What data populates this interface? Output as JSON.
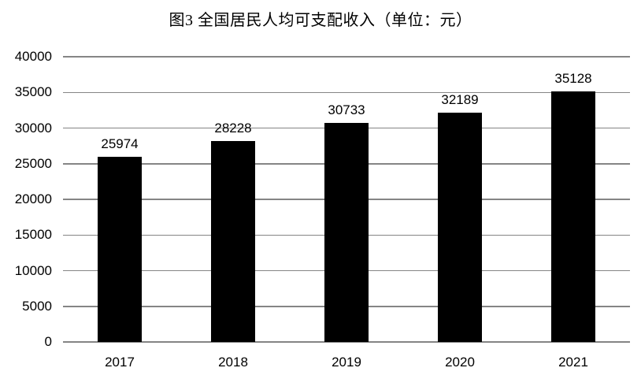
{
  "chart_data": {
    "type": "bar",
    "title": "图3 全国居民人均可支配收入（单位：元）",
    "categories": [
      "2017",
      "2018",
      "2019",
      "2020",
      "2021"
    ],
    "values": [
      25974,
      28228,
      30733,
      32189,
      35128
    ],
    "xlabel": "",
    "ylabel": "",
    "ylim": [
      0,
      40000
    ],
    "yticks": [
      0,
      5000,
      10000,
      15000,
      20000,
      25000,
      30000,
      35000,
      40000
    ],
    "grid": "horizontal",
    "legend": "none",
    "colors": {
      "bar": "#000000",
      "gridline": "#858585",
      "text": "#000000",
      "background": "#ffffff"
    }
  }
}
